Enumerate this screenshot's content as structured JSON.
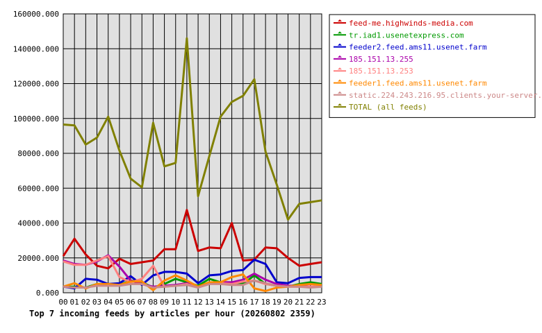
{
  "chart_data": {
    "type": "line",
    "title": "Top 7 incoming feeds by articles per hour (20260802 2359)",
    "xlabel": "",
    "ylabel": "",
    "ylim": [
      0,
      160000
    ],
    "yticks": [
      "0.000",
      "20000.000",
      "40000.000",
      "60000.000",
      "80000.000",
      "100000.000",
      "120000.000",
      "140000.000",
      "160000.000"
    ],
    "categories": [
      "00",
      "01",
      "02",
      "03",
      "04",
      "05",
      "06",
      "07",
      "08",
      "09",
      "10",
      "11",
      "12",
      "13",
      "14",
      "15",
      "16",
      "17",
      "18",
      "19",
      "20",
      "21",
      "22",
      "23"
    ],
    "grid": true,
    "legend_position": "right",
    "series": [
      {
        "name": "feed-me.highwinds-media.com",
        "color": "#cc0000",
        "values": [
          21000,
          31000,
          22000,
          15500,
          14000,
          19500,
          16500,
          17500,
          18500,
          25000,
          25000,
          47500,
          24000,
          26000,
          25500,
          40000,
          18500,
          19000,
          26000,
          25500,
          20000,
          15500,
          16500,
          17500
        ]
      },
      {
        "name": "tr.iad1.usenetexpress.com",
        "color": "#009900",
        "values": [
          3500,
          3500,
          3000,
          5000,
          5000,
          4500,
          7000,
          6000,
          3000,
          5000,
          8000,
          6000,
          4000,
          8000,
          6000,
          6000,
          5000,
          10000,
          5000,
          4000,
          3500,
          5000,
          6000,
          5000
        ]
      },
      {
        "name": "feeder2.feed.ams11.usenet.farm",
        "color": "#0000cc",
        "values": [
          3500,
          2500,
          8000,
          7500,
          5000,
          5500,
          9500,
          4500,
          10000,
          12000,
          12000,
          11000,
          5500,
          10000,
          10500,
          12500,
          13000,
          19000,
          16500,
          6000,
          5500,
          8500,
          9000,
          9000
        ]
      },
      {
        "name": "185.151.13.255",
        "color": "#aa00aa",
        "values": [
          18500,
          16500,
          16000,
          18000,
          21500,
          15000,
          7000,
          5000,
          3500,
          4000,
          4500,
          5500,
          3500,
          5500,
          6000,
          6000,
          7500,
          11000,
          7500,
          5000,
          4000,
          4000,
          3500,
          4000
        ]
      },
      {
        "name": "185.151.13.253",
        "color": "#ff8080",
        "values": [
          18000,
          16000,
          16000,
          18500,
          21000,
          9000,
          6000,
          8000,
          15500,
          3500,
          4000,
          5000,
          3000,
          5500,
          5500,
          5000,
          6500,
          7000,
          5000,
          4000,
          3500,
          3500,
          3500,
          4000
        ]
      },
      {
        "name": "feeder1.feed.ams11.usenet.farm",
        "color": "#ff8800",
        "values": [
          3500,
          5500,
          2500,
          5000,
          5000,
          4500,
          6500,
          6500,
          1500,
          7000,
          10000,
          7000,
          3500,
          6000,
          6000,
          9000,
          10500,
          2500,
          1000,
          3000,
          3500,
          4500,
          5000,
          4500
        ]
      },
      {
        "name": "static.224.243.216.95.clients.your-server.de",
        "color": "#cc8888",
        "values": [
          3500,
          3000,
          3000,
          4000,
          4000,
          4000,
          5000,
          5000,
          3000,
          3500,
          4000,
          4500,
          3000,
          5000,
          5000,
          4500,
          4500,
          7000,
          5500,
          4000,
          3500,
          3500,
          3000,
          3500
        ]
      },
      {
        "name": "TOTAL (all feeds)",
        "color": "#808000",
        "values": [
          96500,
          96000,
          85000,
          89000,
          101000,
          81500,
          65500,
          60500,
          97500,
          72500,
          74500,
          146000,
          55500,
          78500,
          101000,
          109500,
          113000,
          122500,
          81000,
          62000,
          42000,
          51000,
          52000,
          53000
        ]
      }
    ]
  }
}
